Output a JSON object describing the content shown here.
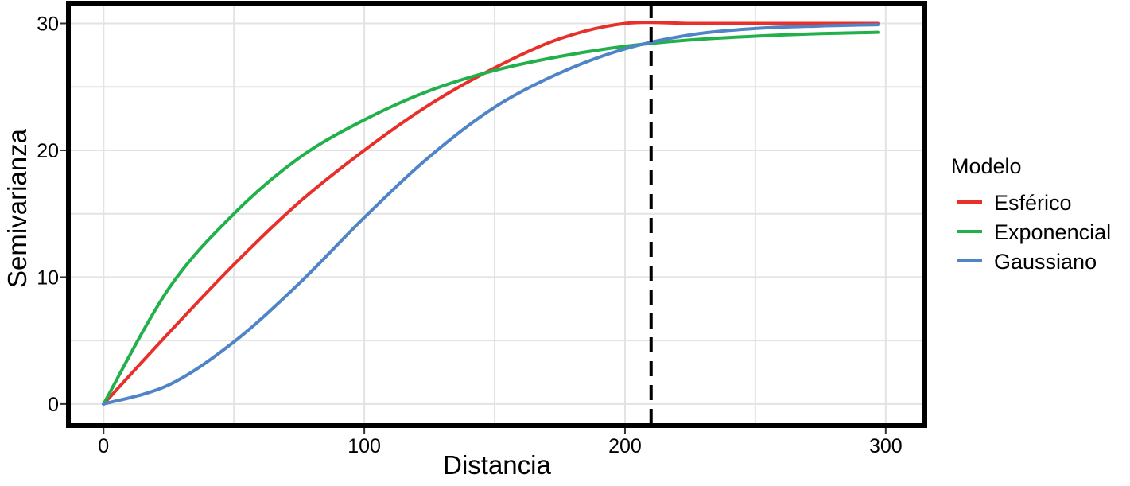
{
  "chart_data": {
    "type": "line",
    "title": "",
    "xlabel": "Distancia",
    "ylabel": "Semivarianza",
    "xlim": [
      -13.5,
      315
    ],
    "ylim": [
      -1.7,
      31.6
    ],
    "x_ticks": [
      0,
      100,
      200,
      300
    ],
    "y_ticks": [
      0,
      10,
      20,
      30
    ],
    "grid": true,
    "legend": {
      "title": "Modelo",
      "position": "right"
    },
    "reference_line": {
      "x": 210,
      "style": "dashed",
      "color": "#000000"
    },
    "x": [
      0,
      25,
      50,
      75,
      100,
      125,
      150,
      175,
      200,
      225,
      250,
      275,
      297
    ],
    "series": [
      {
        "name": "Esférico",
        "color": "#e8302a",
        "values": [
          0,
          5.6,
          11.0,
          15.9,
          20.0,
          23.6,
          26.5,
          28.8,
          30.0,
          30.0,
          30.0,
          30.0,
          30.0
        ]
      },
      {
        "name": "Exponencial",
        "color": "#22b04b",
        "values": [
          0,
          9.1,
          15.0,
          19.4,
          22.4,
          24.7,
          26.3,
          27.4,
          28.2,
          28.7,
          29.0,
          29.2,
          29.3
        ]
      },
      {
        "name": "Gaussiano",
        "color": "#4f84c6",
        "values": [
          0,
          1.5,
          4.9,
          9.5,
          14.7,
          19.5,
          23.4,
          26.1,
          28.0,
          29.1,
          29.6,
          29.8,
          29.9
        ]
      }
    ]
  }
}
